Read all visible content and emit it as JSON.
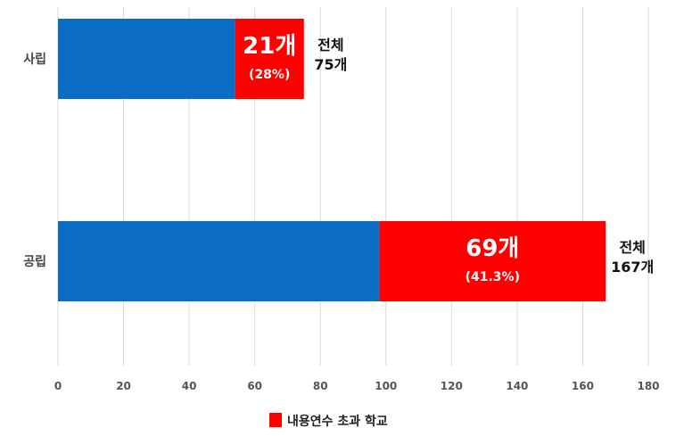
{
  "chart_data": {
    "type": "bar",
    "orientation": "horizontal",
    "stacked": true,
    "categories": [
      "사립",
      "공립"
    ],
    "series": [
      {
        "values": [
          54,
          98
        ],
        "color": "#0a6cc4"
      },
      {
        "name": "내용연수 초과 학교",
        "values": [
          21,
          69
        ],
        "color": "#ff0000"
      }
    ],
    "bar_labels": [
      {
        "count": "21개",
        "percent": "(28%)"
      },
      {
        "count": "69개",
        "percent": "(41.3%)"
      }
    ],
    "totals": [
      {
        "line1": "전체",
        "line2": "75개"
      },
      {
        "line1": "전체",
        "line2": "167개"
      }
    ],
    "xlim": [
      0,
      180
    ],
    "xticks": [
      0,
      20,
      40,
      60,
      80,
      100,
      120,
      140,
      160,
      180
    ],
    "grid": true,
    "legend": {
      "position": "bottom",
      "items": [
        {
          "label": "내용연수 초과 학교",
          "color": "#ff0000"
        }
      ]
    }
  }
}
